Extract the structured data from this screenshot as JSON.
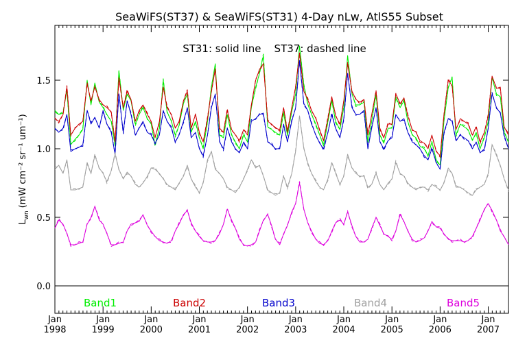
{
  "chart_data": {
    "type": "line",
    "title": "SeaWiFS(ST37) & SeaWiFS(ST31) 4-Day nLw, AtlS55 Subset",
    "annotation": "ST31: solid line    ST37: dashed line",
    "ylabel_main": "L",
    "ylabel_sub": "wn",
    "ylabel_units_html": "(mW cm⁻² sr⁻¹ um⁻¹)",
    "ylim": [
      -0.2,
      1.9
    ],
    "xlim": [
      1998.0,
      2007.42
    ],
    "yticks": [
      {
        "value": 0.0,
        "label": "0.0"
      },
      {
        "value": 0.5,
        "label": "0.5"
      },
      {
        "value": 1.0,
        "label": "1.0"
      },
      {
        "value": 1.5,
        "label": "1.5"
      }
    ],
    "xticks": [
      {
        "value": 1998,
        "month": "Jan",
        "year": "1998"
      },
      {
        "value": 1999,
        "month": "Jan",
        "year": "1999"
      },
      {
        "value": 2000,
        "month": "Jan",
        "year": "2000"
      },
      {
        "value": 2001,
        "month": "Jan",
        "year": "2001"
      },
      {
        "value": 2002,
        "month": "Jan",
        "year": "2002"
      },
      {
        "value": 2003,
        "month": "Jan",
        "year": "2003"
      },
      {
        "value": 2004,
        "month": "Jan",
        "year": "2004"
      },
      {
        "value": 2005,
        "month": "Jan",
        "year": "2005"
      },
      {
        "value": 2006,
        "month": "Jan",
        "year": "2006"
      },
      {
        "value": 2007,
        "month": "Jan",
        "year": "2007"
      }
    ],
    "zero_line": 0.0,
    "legend": [
      {
        "label": "Band1",
        "color": "#00ee00"
      },
      {
        "label": "Band2",
        "color": "#cc0000"
      },
      {
        "label": "Band3",
        "color": "#0000cc"
      },
      {
        "label": "Band4",
        "color": "#a0a0a0"
      },
      {
        "label": "Band5",
        "color": "#dd00dd"
      }
    ],
    "x": [
      1998.0,
      1998.08,
      1998.17,
      1998.25,
      1998.33,
      1998.42,
      1998.5,
      1998.58,
      1998.67,
      1998.75,
      1998.83,
      1998.92,
      1999.0,
      1999.08,
      1999.17,
      1999.25,
      1999.33,
      1999.42,
      1999.5,
      1999.58,
      1999.67,
      1999.75,
      1999.83,
      1999.92,
      2000.0,
      2000.08,
      2000.17,
      2000.25,
      2000.33,
      2000.42,
      2000.5,
      2000.58,
      2000.67,
      2000.75,
      2000.83,
      2000.92,
      2001.0,
      2001.08,
      2001.17,
      2001.25,
      2001.33,
      2001.42,
      2001.5,
      2001.58,
      2001.67,
      2001.75,
      2001.83,
      2001.92,
      2002.0,
      2002.08,
      2002.17,
      2002.25,
      2002.33,
      2002.42,
      2002.5,
      2002.58,
      2002.67,
      2002.75,
      2002.83,
      2002.92,
      2003.0,
      2003.08,
      2003.17,
      2003.25,
      2003.33,
      2003.42,
      2003.5,
      2003.58,
      2003.67,
      2003.75,
      2003.83,
      2003.92,
      2004.0,
      2004.08,
      2004.17,
      2004.25,
      2004.33,
      2004.42,
      2004.5,
      2004.58,
      2004.67,
      2004.75,
      2004.83,
      2004.92,
      2005.0,
      2005.08,
      2005.17,
      2005.25,
      2005.33,
      2005.42,
      2005.5,
      2005.58,
      2005.67,
      2005.75,
      2005.83,
      2005.92,
      2006.0,
      2006.08,
      2006.17,
      2006.25,
      2006.33,
      2006.42,
      2006.5,
      2006.58,
      2006.67,
      2006.75,
      2006.83,
      2006.92,
      2007.0,
      2007.08,
      2007.17,
      2007.25,
      2007.33,
      2007.42
    ],
    "series": [
      {
        "name": "Band1",
        "color": "#00ee00",
        "values": [
          1.28,
          1.25,
          1.26,
          1.43,
          1.03,
          1.07,
          1.1,
          1.14,
          1.5,
          1.32,
          1.48,
          1.34,
          1.3,
          1.25,
          1.2,
          1.03,
          1.57,
          1.28,
          1.4,
          1.35,
          1.18,
          1.25,
          1.3,
          1.22,
          1.18,
          1.03,
          1.15,
          1.5,
          1.27,
          1.2,
          1.1,
          1.17,
          1.33,
          1.4,
          1.12,
          1.2,
          1.08,
          1.0,
          1.2,
          1.45,
          1.62,
          1.1,
          1.08,
          1.25,
          1.1,
          1.05,
          1.0,
          1.1,
          1.05,
          1.3,
          1.45,
          1.55,
          1.68,
          1.16,
          1.14,
          1.12,
          1.1,
          1.26,
          1.1,
          1.27,
          1.4,
          1.75,
          1.46,
          1.33,
          1.25,
          1.18,
          1.1,
          1.02,
          1.2,
          1.35,
          1.2,
          1.14,
          1.3,
          1.68,
          1.4,
          1.32,
          1.32,
          1.34,
          1.05,
          1.2,
          1.4,
          1.1,
          1.04,
          1.15,
          1.15,
          1.38,
          1.3,
          1.35,
          1.2,
          1.1,
          1.08,
          1.02,
          1.0,
          0.95,
          1.05,
          0.92,
          0.88,
          1.2,
          1.45,
          1.52,
          1.1,
          1.18,
          1.16,
          1.14,
          1.06,
          1.12,
          1.0,
          1.08,
          1.2,
          1.52,
          1.4,
          1.38,
          1.12,
          1.05
        ]
      },
      {
        "name": "Band2",
        "color": "#cc0000",
        "values": [
          1.22,
          1.2,
          1.25,
          1.45,
          1.1,
          1.15,
          1.18,
          1.2,
          1.47,
          1.35,
          1.45,
          1.36,
          1.32,
          1.3,
          1.27,
          1.05,
          1.52,
          1.3,
          1.42,
          1.36,
          1.2,
          1.28,
          1.32,
          1.25,
          1.2,
          1.08,
          1.2,
          1.45,
          1.3,
          1.25,
          1.15,
          1.2,
          1.35,
          1.42,
          1.15,
          1.25,
          1.12,
          1.05,
          1.22,
          1.42,
          1.58,
          1.15,
          1.12,
          1.28,
          1.14,
          1.1,
          1.06,
          1.14,
          1.1,
          1.32,
          1.5,
          1.58,
          1.62,
          1.2,
          1.18,
          1.15,
          1.14,
          1.3,
          1.12,
          1.3,
          1.45,
          1.7,
          1.42,
          1.36,
          1.28,
          1.22,
          1.14,
          1.06,
          1.22,
          1.38,
          1.24,
          1.18,
          1.35,
          1.62,
          1.42,
          1.36,
          1.34,
          1.36,
          1.1,
          1.25,
          1.42,
          1.15,
          1.08,
          1.18,
          1.18,
          1.4,
          1.33,
          1.37,
          1.24,
          1.14,
          1.12,
          1.06,
          1.04,
          1.0,
          1.1,
          0.98,
          0.95,
          1.25,
          1.5,
          1.46,
          1.14,
          1.22,
          1.2,
          1.18,
          1.1,
          1.16,
          1.05,
          1.12,
          1.24,
          1.53,
          1.44,
          1.45,
          1.16,
          1.1
        ]
      },
      {
        "name": "Band3",
        "color": "#0000cc",
        "values": [
          1.15,
          1.12,
          1.15,
          1.25,
          0.98,
          1.0,
          1.01,
          1.03,
          1.28,
          1.18,
          1.23,
          1.15,
          1.28,
          1.18,
          1.12,
          0.96,
          1.4,
          1.12,
          1.35,
          1.25,
          1.1,
          1.15,
          1.2,
          1.12,
          1.1,
          1.04,
          1.1,
          1.28,
          1.2,
          1.15,
          1.05,
          1.1,
          1.2,
          1.3,
          1.08,
          1.12,
          1.0,
          0.95,
          1.1,
          1.3,
          1.4,
          1.05,
          1.0,
          1.15,
          1.05,
          1.0,
          0.97,
          1.05,
          1.0,
          1.2,
          1.22,
          1.25,
          1.26,
          1.05,
          1.03,
          1.0,
          1.0,
          1.18,
          1.05,
          1.2,
          1.3,
          1.64,
          1.33,
          1.28,
          1.18,
          1.1,
          1.04,
          1.0,
          1.12,
          1.25,
          1.15,
          1.08,
          1.22,
          1.55,
          1.3,
          1.25,
          1.25,
          1.28,
          1.0,
          1.15,
          1.3,
          1.05,
          1.0,
          1.06,
          1.08,
          1.25,
          1.2,
          1.22,
          1.12,
          1.05,
          1.03,
          1.0,
          0.95,
          0.92,
          1.0,
          0.9,
          0.85,
          1.12,
          1.22,
          1.2,
          1.06,
          1.1,
          1.08,
          1.06,
          1.0,
          1.05,
          0.97,
          1.0,
          1.15,
          1.4,
          1.3,
          1.26,
          1.1,
          1.0
        ]
      },
      {
        "name": "Band4",
        "color": "#a0a0a0",
        "values": [
          0.85,
          0.88,
          0.82,
          0.92,
          0.7,
          0.7,
          0.71,
          0.72,
          0.9,
          0.82,
          0.95,
          0.86,
          0.82,
          0.76,
          0.84,
          0.96,
          0.85,
          0.78,
          0.83,
          0.8,
          0.74,
          0.72,
          0.75,
          0.8,
          0.86,
          0.85,
          0.82,
          0.78,
          0.74,
          0.72,
          0.7,
          0.75,
          0.8,
          0.88,
          0.78,
          0.72,
          0.68,
          0.75,
          0.92,
          0.98,
          0.85,
          0.82,
          0.78,
          0.72,
          0.7,
          0.68,
          0.72,
          0.78,
          0.85,
          0.92,
          0.86,
          0.88,
          0.8,
          0.7,
          0.68,
          0.66,
          0.68,
          0.8,
          0.72,
          0.82,
          0.98,
          1.24,
          1.0,
          0.9,
          0.82,
          0.76,
          0.72,
          0.7,
          0.78,
          0.9,
          0.82,
          0.74,
          0.8,
          0.96,
          0.86,
          0.82,
          0.8,
          0.8,
          0.72,
          0.74,
          0.82,
          0.74,
          0.7,
          0.75,
          0.78,
          0.9,
          0.82,
          0.8,
          0.75,
          0.72,
          0.7,
          0.72,
          0.72,
          0.7,
          0.74,
          0.72,
          0.7,
          0.75,
          0.86,
          0.82,
          0.72,
          0.72,
          0.7,
          0.68,
          0.66,
          0.7,
          0.72,
          0.74,
          0.82,
          1.03,
          0.95,
          0.88,
          0.78,
          0.7
        ]
      },
      {
        "name": "Band5",
        "color": "#dd00dd",
        "values": [
          0.42,
          0.48,
          0.45,
          0.38,
          0.3,
          0.3,
          0.31,
          0.32,
          0.45,
          0.5,
          0.58,
          0.48,
          0.45,
          0.38,
          0.3,
          0.3,
          0.31,
          0.32,
          0.4,
          0.45,
          0.46,
          0.47,
          0.52,
          0.44,
          0.4,
          0.36,
          0.33,
          0.32,
          0.31,
          0.33,
          0.4,
          0.45,
          0.52,
          0.55,
          0.46,
          0.4,
          0.36,
          0.33,
          0.32,
          0.32,
          0.33,
          0.38,
          0.45,
          0.56,
          0.48,
          0.42,
          0.34,
          0.3,
          0.29,
          0.3,
          0.32,
          0.4,
          0.48,
          0.52,
          0.44,
          0.34,
          0.3,
          0.38,
          0.44,
          0.54,
          0.6,
          0.75,
          0.56,
          0.46,
          0.4,
          0.34,
          0.31,
          0.3,
          0.33,
          0.4,
          0.46,
          0.48,
          0.45,
          0.54,
          0.44,
          0.36,
          0.32,
          0.32,
          0.34,
          0.42,
          0.5,
          0.44,
          0.38,
          0.36,
          0.34,
          0.4,
          0.52,
          0.47,
          0.4,
          0.34,
          0.32,
          0.33,
          0.35,
          0.4,
          0.47,
          0.43,
          0.42,
          0.38,
          0.34,
          0.33,
          0.33,
          0.33,
          0.32,
          0.33,
          0.36,
          0.42,
          0.48,
          0.56,
          0.6,
          0.55,
          0.48,
          0.4,
          0.36,
          0.3
        ]
      }
    ]
  }
}
